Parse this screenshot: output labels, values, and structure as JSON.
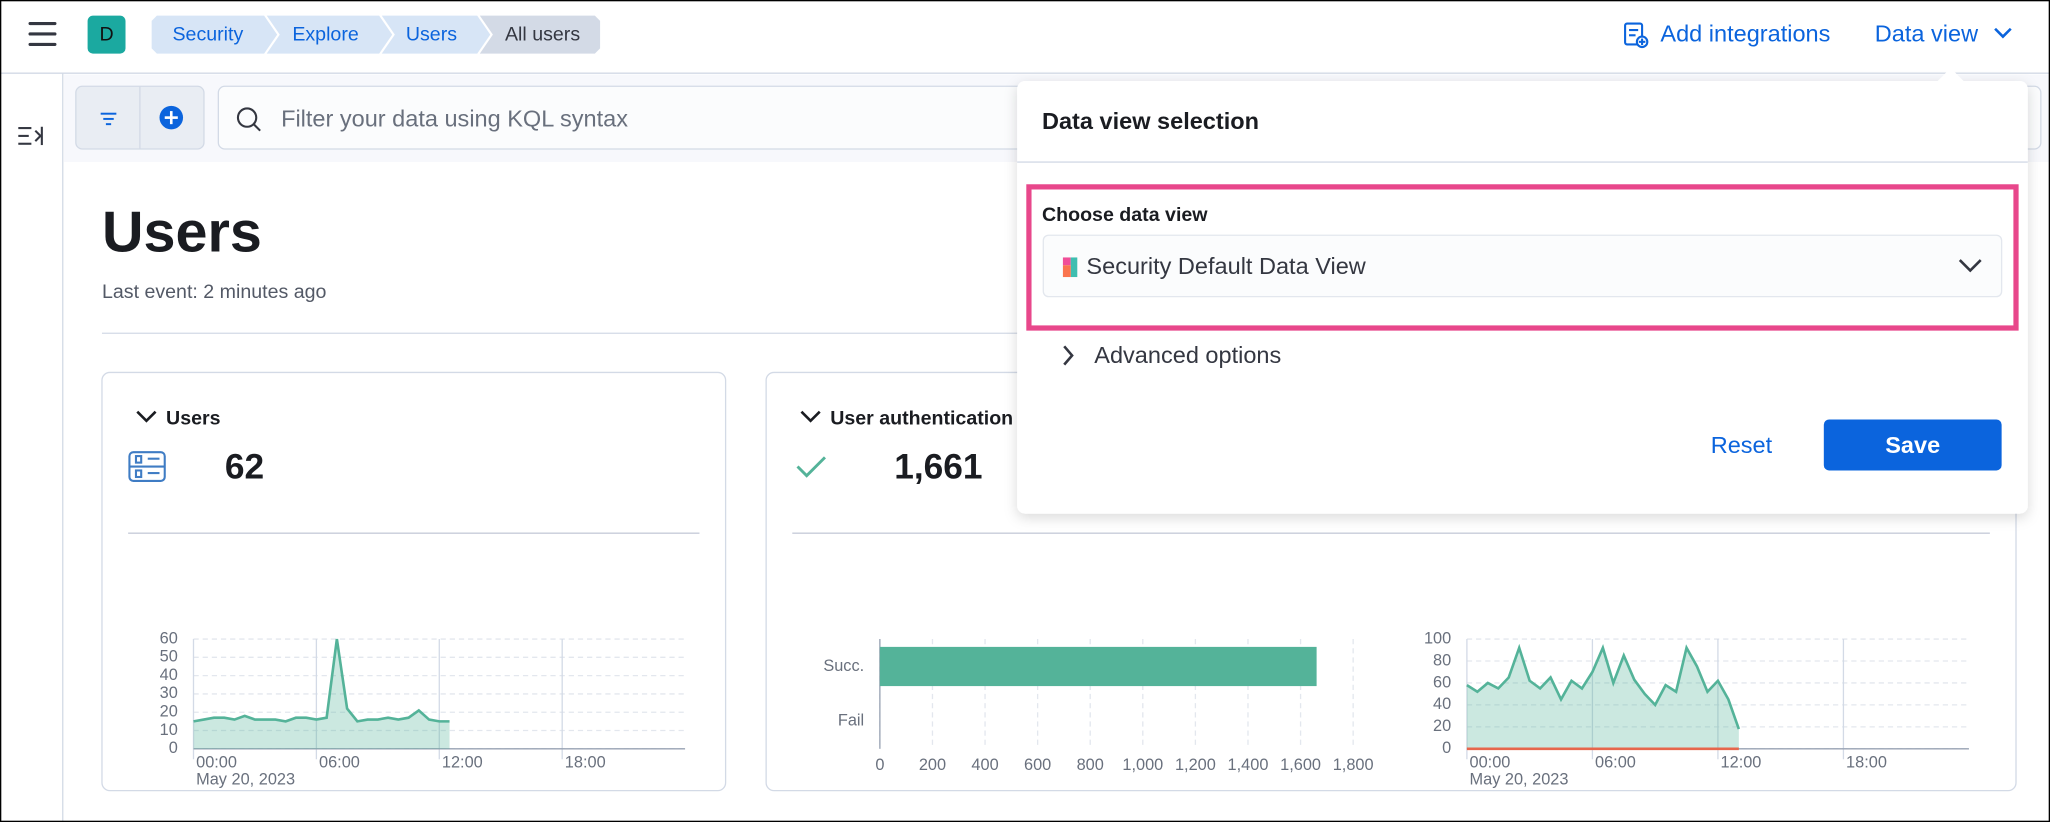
{
  "header": {
    "avatar": "D",
    "breadcrumbs": [
      "Security",
      "Explore",
      "Users",
      "All users"
    ],
    "add_integrations": "Add integrations",
    "data_view": "Data view"
  },
  "search": {
    "placeholder": "Filter your data using KQL syntax"
  },
  "page": {
    "title": "Users",
    "last_event": "Last event: 2 minutes ago"
  },
  "panels": [
    {
      "title": "Users",
      "metric": "62"
    },
    {
      "title": "User authentication",
      "metric": "1,661"
    }
  ],
  "popover": {
    "title": "Data view selection",
    "label": "Choose data view",
    "selected": "Security Default Data View",
    "advanced": "Advanced options",
    "reset": "Reset",
    "save": "Save"
  },
  "chart_data": [
    {
      "type": "area",
      "x": [
        0,
        0.5,
        1,
        1.5,
        2,
        2.5,
        3,
        3.5,
        4,
        4.5,
        5,
        5.5,
        6,
        6.5,
        7,
        7.5,
        8,
        8.5,
        9,
        9.5,
        10,
        10.5,
        11,
        11.5,
        12,
        12.5
      ],
      "series": [
        {
          "color": "#54b399",
          "values": [
            15,
            16,
            17,
            17,
            16,
            18,
            16,
            16,
            16,
            15,
            17,
            17,
            16,
            17,
            60,
            22,
            15,
            16,
            16,
            17,
            16,
            17,
            21,
            16,
            15,
            15
          ]
        }
      ],
      "xlim": [
        0,
        24
      ],
      "xticks": [
        {
          "value": 0,
          "label": "00:00"
        },
        {
          "value": 6,
          "label": "06:00"
        },
        {
          "value": 12,
          "label": "12:00"
        },
        {
          "value": 18,
          "label": "18:00"
        }
      ],
      "x_date": "May 20, 2023",
      "ylim": [
        0,
        60
      ],
      "yticks": [
        0,
        10,
        20,
        30,
        40,
        50,
        60
      ],
      "grid": true
    },
    {
      "type": "bar",
      "orientation": "horizontal",
      "categories": [
        "Succ.",
        "Fail"
      ],
      "values": [
        1661,
        0
      ],
      "color": "#54b399",
      "xlim": [
        0,
        1800
      ],
      "xticks": [
        0,
        200,
        400,
        600,
        800,
        {
          "value": 1000,
          "label": "1,000"
        },
        {
          "value": 1200,
          "label": "1,200"
        },
        {
          "value": 1400,
          "label": "1,400"
        },
        {
          "value": 1600,
          "label": "1,600"
        },
        {
          "value": 1800,
          "label": "1,800"
        }
      ],
      "grid": true
    },
    {
      "type": "area",
      "x": [
        0,
        0.5,
        1,
        1.5,
        2,
        2.5,
        3,
        3.5,
        4,
        4.5,
        5,
        5.5,
        6,
        6.5,
        7,
        7.5,
        8,
        8.5,
        9,
        9.5,
        10,
        10.5,
        11,
        11.5,
        12,
        12.5,
        13
      ],
      "series": [
        {
          "color": "#54b399",
          "values": [
            58,
            52,
            60,
            55,
            65,
            92,
            62,
            55,
            65,
            45,
            62,
            55,
            70,
            92,
            60,
            85,
            63,
            50,
            40,
            58,
            52,
            92,
            75,
            52,
            62,
            45,
            18
          ]
        },
        {
          "color": "#e7664c",
          "values": [
            0,
            0,
            0,
            0,
            0,
            0,
            0,
            0,
            0,
            0,
            0,
            0,
            0,
            0,
            0,
            0,
            0,
            0,
            0,
            0,
            0,
            0,
            0,
            0,
            0,
            0,
            0
          ]
        }
      ],
      "xlim": [
        0,
        24
      ],
      "xticks": [
        {
          "value": 0,
          "label": "00:00"
        },
        {
          "value": 6,
          "label": "06:00"
        },
        {
          "value": 12,
          "label": "12:00"
        },
        {
          "value": 18,
          "label": "18:00"
        }
      ],
      "x_date": "May 20, 2023",
      "ylim": [
        0,
        100
      ],
      "yticks": [
        0,
        20,
        40,
        60,
        80,
        100
      ],
      "grid": true
    }
  ]
}
